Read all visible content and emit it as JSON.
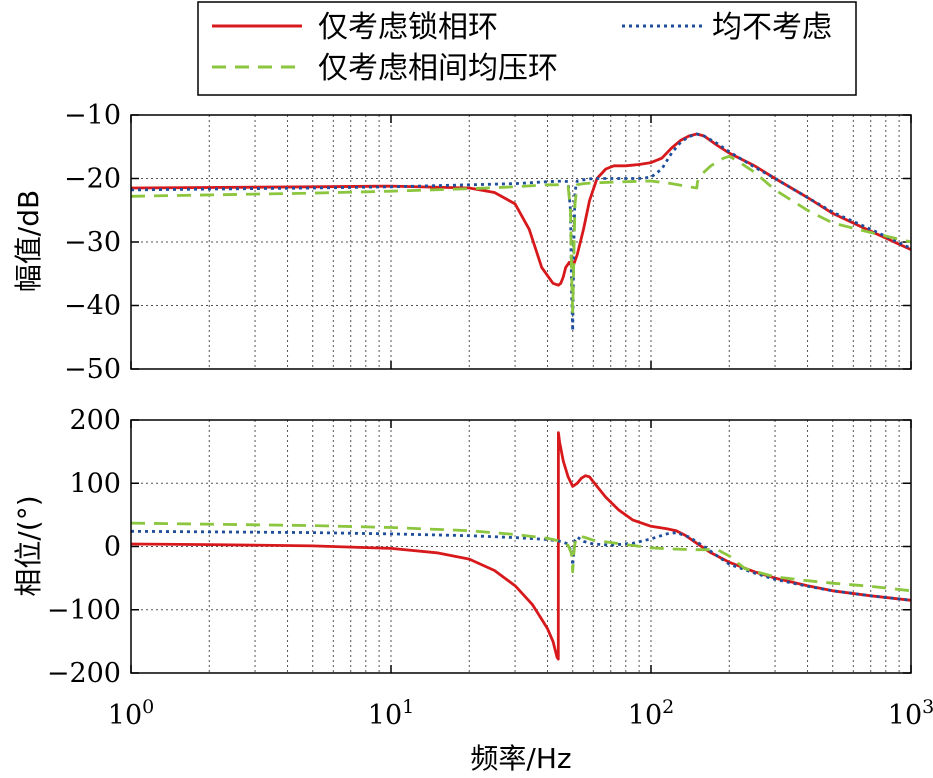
{
  "chart_data": {
    "type": "line",
    "x_scale": "log",
    "xlim": [
      1,
      1000
    ],
    "x_tick_labels": [
      {
        "base": "10",
        "exp": "0"
      },
      {
        "base": "10",
        "exp": "1"
      },
      {
        "base": "10",
        "exp": "2"
      },
      {
        "base": "10",
        "exp": "3"
      }
    ],
    "xlabel": "频率/Hz",
    "grid": true,
    "legend": {
      "placement": "top",
      "entries": [
        {
          "name": "仅考虑锁相环",
          "color": "#d7191c",
          "style": "solid"
        },
        {
          "name": "均不考虑",
          "color": "#1f4e9c",
          "style": "dotted"
        },
        {
          "name": "仅考虑相间均压环",
          "color": "#8cc63f",
          "style": "dashed"
        }
      ]
    },
    "panels": [
      {
        "name": "magnitude",
        "ylabel": "幅值/dB",
        "ylim": [
          -50,
          -10
        ],
        "yticks": [
          -50,
          -40,
          -30,
          -20,
          -10
        ],
        "ytick_labels": [
          "−50",
          "−40",
          "−30",
          "−20",
          "−10"
        ],
        "series": [
          {
            "name": "仅考虑锁相环",
            "color": "#d7191c",
            "style": "solid",
            "x": [
              1,
              5,
              10,
              20,
              25,
              30,
              34,
              38,
              42,
              44,
              45,
              46,
              47,
              48.5,
              50,
              52,
              55,
              58,
              62,
              67,
              72,
              80,
              90,
              100,
              110,
              120,
              130,
              140,
              150,
              160,
              180,
              200,
              250,
              300,
              400,
              500,
              700,
              1000
            ],
            "y": [
              -21.5,
              -21.3,
              -21.2,
              -21.5,
              -22.2,
              -24.0,
              -28.0,
              -34.0,
              -36.5,
              -36.8,
              -36.5,
              -35.5,
              -34.0,
              -33.2,
              -34.0,
              -32.0,
              -28.0,
              -23.5,
              -20.0,
              -18.5,
              -18.0,
              -18.0,
              -17.8,
              -17.5,
              -16.8,
              -15.2,
              -14.0,
              -13.3,
              -13.0,
              -13.3,
              -14.8,
              -16.0,
              -18.0,
              -20.0,
              -23.0,
              -25.5,
              -28.3,
              -31.2
            ]
          },
          {
            "name": "均不考虑",
            "color": "#1f4e9c",
            "style": "dotted",
            "x": [
              1,
              5,
              10,
              20,
              30,
              40,
              46,
              48,
              49,
              49.5,
              50,
              50.5,
              51,
              52,
              55,
              60,
              70,
              80,
              90,
              100,
              110,
              120,
              130,
              140,
              150,
              160,
              180,
              200,
              250,
              300,
              400,
              500,
              700,
              1000
            ],
            "y": [
              -21.8,
              -21.5,
              -21.3,
              -21.0,
              -20.8,
              -20.5,
              -20.4,
              -20.5,
              -25.0,
              -38.0,
              -44.0,
              -30.0,
              -22.0,
              -20.4,
              -20.2,
              -20.0,
              -20.0,
              -20.0,
              -20.0,
              -19.8,
              -18.5,
              -16.0,
              -14.3,
              -13.4,
              -13.0,
              -13.3,
              -14.5,
              -15.8,
              -18.2,
              -20.0,
              -23.0,
              -25.3,
              -28.0,
              -31.0
            ]
          },
          {
            "name": "仅考虑相间均压环",
            "color": "#8cc63f",
            "style": "dashed",
            "x": [
              1,
              5,
              10,
              20,
              30,
              40,
              45,
              48,
              49,
              49.5,
              50,
              50.5,
              51,
              52,
              55,
              60,
              80,
              100,
              120,
              140,
              150,
              151,
              155,
              170,
              190,
              200,
              220,
              250,
              300,
              400,
              500,
              700,
              1000
            ],
            "y": [
              -22.8,
              -22.3,
              -22.0,
              -21.6,
              -21.3,
              -21.0,
              -21.0,
              -21.2,
              -25.0,
              -35.0,
              -41.0,
              -32.0,
              -24.0,
              -21.0,
              -20.8,
              -20.7,
              -20.5,
              -20.4,
              -20.8,
              -21.3,
              -21.5,
              -20.5,
              -19.5,
              -18.0,
              -16.8,
              -16.5,
              -17.5,
              -19.0,
              -21.8,
              -25.0,
              -27.0,
              -28.5,
              -30.0
            ]
          }
        ]
      },
      {
        "name": "phase",
        "ylabel": "相位/(°)",
        "ylim": [
          -200,
          200
        ],
        "yticks": [
          -200,
          -100,
          0,
          100,
          200
        ],
        "ytick_labels": [
          "−200",
          "−100",
          "0",
          "100",
          "200"
        ],
        "series": [
          {
            "name": "仅考虑锁相环",
            "color": "#d7191c",
            "style": "solid",
            "x": [
              1,
              2,
              5,
              10,
              15,
              20,
              25,
              30,
              35,
              38,
              40,
              42,
              43.5,
              44,
              44.05,
              44.5,
              46,
              48,
              50,
              52,
              54,
              56,
              58,
              62,
              67,
              75,
              85,
              100,
              115,
              125,
              135,
              150,
              170,
              200,
              250,
              300,
              400,
              500,
              700,
              1000
            ],
            "y": [
              4,
              3,
              1,
              -3,
              -10,
              -20,
              -38,
              -62,
              -92,
              -115,
              -130,
              -150,
              -175,
              -178,
              180,
              165,
              135,
              110,
              95,
              100,
              108,
              112,
              110,
              95,
              78,
              58,
              42,
              32,
              28,
              25,
              18,
              5,
              -10,
              -25,
              -40,
              -50,
              -62,
              -70,
              -78,
              -85
            ]
          },
          {
            "name": "均不考虑",
            "color": "#1f4e9c",
            "style": "dotted",
            "x": [
              1,
              5,
              10,
              20,
              30,
              40,
              45,
              48,
              49.5,
              50,
              50.5,
              51,
              52,
              55,
              60,
              70,
              85,
              100,
              115,
              125,
              140,
              160,
              180,
              200,
              250,
              300,
              400,
              500,
              700,
              1000
            ],
            "y": [
              24,
              22,
              20,
              17,
              14,
              11,
              8,
              4,
              -10,
              -30,
              -5,
              10,
              15,
              8,
              4,
              2,
              5,
              12,
              20,
              22,
              15,
              0,
              -15,
              -28,
              -42,
              -52,
              -63,
              -70,
              -78,
              -85
            ]
          },
          {
            "name": "仅考虑相间均压环",
            "color": "#8cc63f",
            "style": "dashed",
            "x": [
              1,
              5,
              10,
              20,
              30,
              40,
              45,
              48,
              49.5,
              50,
              50.5,
              51,
              52,
              55,
              60,
              80,
              100,
              120,
              150,
              180,
              200,
              230,
              300,
              400,
              500,
              700,
              1000
            ],
            "y": [
              37,
              33,
              30,
              25,
              19,
              13,
              8,
              2,
              -12,
              -40,
              -10,
              5,
              15,
              15,
              10,
              3,
              -2,
              -4,
              -5,
              -5,
              -15,
              -35,
              -48,
              -54,
              -58,
              -63,
              -70
            ]
          }
        ]
      }
    ]
  }
}
